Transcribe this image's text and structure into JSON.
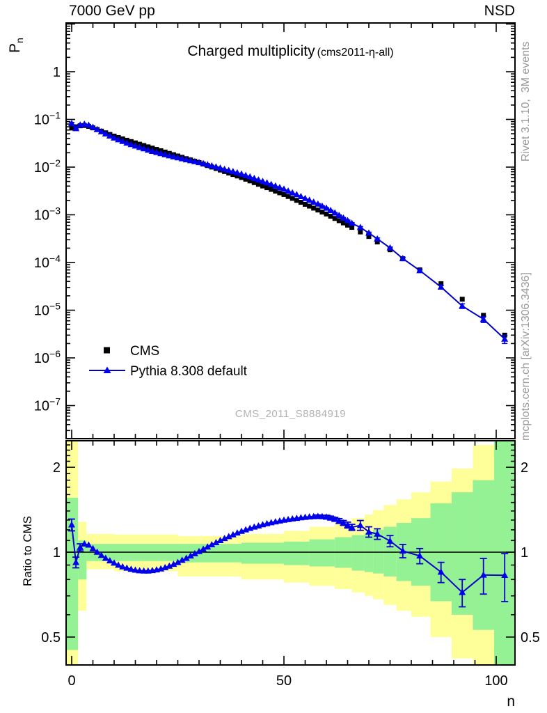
{
  "header": {
    "left": "7000 GeV pp",
    "right": "NSD"
  },
  "titles": {
    "main": "Charged multiplicity",
    "sub": "(cms2011-η-all)"
  },
  "axis": {
    "y_top_base": "P",
    "y_top_sub": "n",
    "y_bottom": "Ratio to CMS",
    "x": "n"
  },
  "watermark": "CMS_2011_S8884919",
  "side_notes": {
    "top_right": "Rivet 3.1.10,  3M events",
    "bottom_right": "mcplots.cern.ch [arXiv:1306.3436]"
  },
  "chart_data": {
    "type": "scatter",
    "title": "Charged multiplicity",
    "subtitle": "(cms2011-η-all)",
    "xlabel": "n",
    "ylabel": "P_n",
    "ratio_label": "Ratio to CMS",
    "x_axis": {
      "ticks_labeled": [
        0,
        50,
        100
      ],
      "minor_step": 5,
      "range": [
        -1.4,
        105.6
      ]
    },
    "y_axis_top": {
      "scale": "log",
      "labeled_decade_exponents": [
        0,
        -1,
        -2,
        -3,
        -4,
        -5,
        -6,
        -7
      ],
      "range": [
        2e-08,
        10.5
      ]
    },
    "y_axis_bottom": {
      "scale": "log",
      "tick_labels": [
        "0.5",
        "1",
        "2"
      ],
      "tick_values": [
        0.5,
        1,
        2
      ],
      "minor_tick_values": [
        0.4,
        0.6,
        0.7,
        0.8,
        0.9,
        1.1,
        1.2,
        1.3,
        1.4,
        1.5,
        1.6,
        1.7,
        1.8,
        1.9,
        2.1,
        2.2,
        2.3,
        2.4
      ],
      "range": [
        0.398,
        2.48
      ],
      "reference_line": 1
    },
    "legend": [
      {
        "label": "CMS",
        "marker": "square",
        "color": "#000000"
      },
      {
        "label": "Pythia 8.308 default",
        "marker": "triangle",
        "color": "#0000ee"
      }
    ],
    "colors": {
      "cms": "#000000",
      "pythia_marker": "#0000ee",
      "pythia_line": "#0000cc",
      "band_green": "#94f294",
      "band_yellow": "#ffff9a",
      "side_note": "#999999",
      "watermark": "#b2b2b2"
    },
    "series": {
      "x": [
        0,
        1,
        2,
        3,
        4,
        5,
        6,
        7,
        8,
        9,
        10,
        11,
        12,
        13,
        14,
        15,
        16,
        17,
        18,
        19,
        20,
        21,
        22,
        23,
        24,
        25,
        26,
        27,
        28,
        29,
        30,
        31,
        32,
        33,
        34,
        35,
        36,
        37,
        38,
        39,
        40,
        41,
        42,
        43,
        44,
        45,
        46,
        47,
        48,
        49,
        50,
        51,
        52,
        53,
        54,
        55,
        56,
        57,
        58,
        59,
        60,
        61,
        62,
        63,
        64,
        65,
        66,
        68,
        70,
        72,
        75,
        78,
        82,
        87,
        92,
        97,
        102
      ],
      "cms_pn": [
        0.066,
        0.07,
        0.0735,
        0.0745,
        0.0715,
        0.0665,
        0.0615,
        0.0568,
        0.0524,
        0.0484,
        0.0447,
        0.0418,
        0.0391,
        0.0366,
        0.0343,
        0.0322,
        0.0302,
        0.0284,
        0.0266,
        0.025,
        0.0235,
        0.02206,
        0.0207,
        0.01943,
        0.01823,
        0.01711,
        0.01606,
        0.01507,
        0.01415,
        0.01328,
        0.01246,
        0.01159,
        0.01079,
        0.01004,
        0.00934,
        0.00869,
        0.00808,
        0.00752,
        0.007,
        0.00651,
        0.00606,
        0.00558,
        0.00514,
        0.00473,
        0.00436,
        0.00402,
        0.0037,
        0.00341,
        0.00314,
        0.00289,
        0.00266,
        0.00242,
        0.00221,
        0.00201,
        0.00183,
        0.00166,
        0.00152,
        0.00138,
        0.00126,
        0.00114,
        0.00104,
        0.000934,
        0.000839,
        0.000753,
        0.000676,
        0.000607,
        0.000545,
        0.000437,
        0.000351,
        0.00027,
        0.000185,
        0.00012,
        7e-05,
        3.6e-05,
        1.7e-05,
        7.8e-06,
        3e-06
      ],
      "ratio_pythia_over_cms": [
        1.25,
        0.92,
        1.04,
        1.07,
        1.06,
        1.03,
        1.0,
        0.975,
        0.952,
        0.932,
        0.915,
        0.9,
        0.888,
        0.878,
        0.87,
        0.864,
        0.86,
        0.858,
        0.858,
        0.861,
        0.866,
        0.873,
        0.882,
        0.893,
        0.906,
        0.92,
        0.936,
        0.952,
        0.97,
        0.988,
        1.006,
        1.025,
        1.044,
        1.063,
        1.082,
        1.1,
        1.118,
        1.136,
        1.153,
        1.17,
        1.186,
        1.201,
        1.215,
        1.228,
        1.24,
        1.252,
        1.263,
        1.273,
        1.282,
        1.291,
        1.299,
        1.306,
        1.313,
        1.319,
        1.325,
        1.33,
        1.335,
        1.338,
        1.34,
        1.338,
        1.332,
        1.322,
        1.308,
        1.29,
        1.27,
        1.248,
        1.225,
        1.245,
        1.18,
        1.16,
        1.095,
        1.01,
        0.97,
        0.85,
        0.72,
        0.83,
        0.828
      ],
      "ratio_err": [
        0.06,
        0.04,
        0.03,
        0,
        0,
        0,
        0,
        0,
        0,
        0,
        0,
        0,
        0,
        0,
        0,
        0,
        0,
        0,
        0,
        0,
        0,
        0,
        0,
        0,
        0,
        0,
        0,
        0,
        0,
        0,
        0,
        0,
        0,
        0,
        0,
        0,
        0,
        0,
        0,
        0,
        0,
        0,
        0,
        0,
        0,
        0,
        0,
        0,
        0,
        0,
        0,
        0,
        0,
        0,
        0,
        0,
        0,
        0,
        0.015,
        0.015,
        0.02,
        0.02,
        0.02,
        0.025,
        0.025,
        0.03,
        0.03,
        0.05,
        0.05,
        0.05,
        0.05,
        0.055,
        0.06,
        0.07,
        0.08,
        0.12,
        0.16
      ]
    },
    "bands_format": [
      "x0",
      "x1",
      "green_lo",
      "green_hi",
      "yellow_lo",
      "yellow_hi"
    ],
    "uncertainty_bands": [
      [
        -1.4,
        1.5,
        0.45,
        1.56,
        0.27,
        2.6
      ],
      [
        1.5,
        3.5,
        0.8,
        1.1,
        0.62,
        1.28
      ],
      [
        3.5,
        10,
        0.93,
        1.07,
        0.87,
        1.16
      ],
      [
        10,
        25,
        0.93,
        1.07,
        0.855,
        1.155
      ],
      [
        25,
        40,
        0.92,
        1.07,
        0.82,
        1.14
      ],
      [
        40,
        50,
        0.91,
        1.08,
        0.8,
        1.16
      ],
      [
        50,
        56,
        0.9,
        1.09,
        0.78,
        1.19
      ],
      [
        56,
        62,
        0.89,
        1.11,
        0.76,
        1.23
      ],
      [
        62,
        66,
        0.88,
        1.13,
        0.74,
        1.27
      ],
      [
        66,
        69,
        0.86,
        1.15,
        0.72,
        1.32
      ],
      [
        69,
        71,
        0.85,
        1.17,
        0.7,
        1.36
      ],
      [
        71,
        73.5,
        0.84,
        1.2,
        0.68,
        1.41
      ],
      [
        73.5,
        76.5,
        0.82,
        1.23,
        0.65,
        1.47
      ],
      [
        76.5,
        80,
        0.79,
        1.27,
        0.62,
        1.54
      ],
      [
        80,
        84.5,
        0.76,
        1.32,
        0.59,
        1.63
      ],
      [
        84.5,
        89.5,
        0.67,
        1.49,
        0.5,
        1.78
      ],
      [
        89.5,
        94.5,
        0.6,
        1.63,
        0.42,
        1.98
      ],
      [
        94.5,
        99.5,
        0.53,
        1.8,
        0.36,
        2.4
      ],
      [
        99.5,
        105.6,
        0.3,
        2.6,
        0.27,
        3.0
      ]
    ]
  }
}
